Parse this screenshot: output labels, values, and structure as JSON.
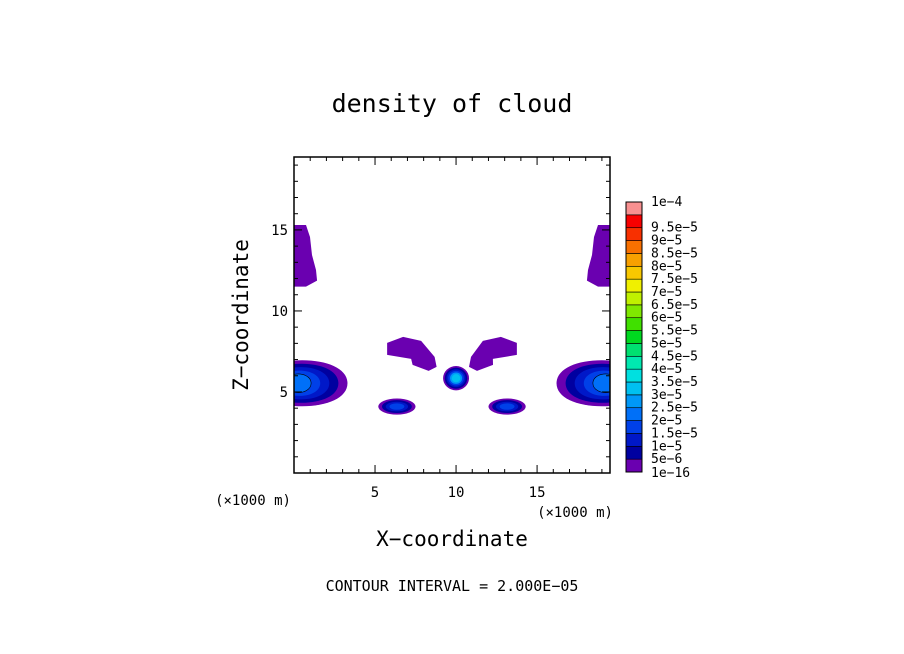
{
  "chart_data": {
    "type": "heatmap",
    "title": "density of cloud",
    "xlabel": "X−coordinate",
    "ylabel": "Z−coordinate",
    "x_unit_left": "(×1000 m)",
    "x_unit_right": "(×1000 m)",
    "xlim": [
      0,
      19.5
    ],
    "ylim": [
      0,
      19.5
    ],
    "x_ticks": [
      {
        "value": 5,
        "label": "5"
      },
      {
        "value": 10,
        "label": "10"
      },
      {
        "value": 15,
        "label": "15"
      }
    ],
    "y_ticks": [
      {
        "value": 5,
        "label": "5"
      },
      {
        "value": 10,
        "label": "10"
      },
      {
        "value": 15,
        "label": "15"
      }
    ],
    "footer": "CONTOUR INTERVAL = 2.000E−05",
    "colorbar": [
      {
        "label": "1e−16",
        "color": "#6a00b0"
      },
      {
        "label": "5e−6",
        "color": "#0000a0"
      },
      {
        "label": "1e−5",
        "color": "#0018c8"
      },
      {
        "label": "1.5e−5",
        "color": "#0040e8"
      },
      {
        "label": "2e−5",
        "color": "#0070f8"
      },
      {
        "label": "2.5e−5",
        "color": "#0098f8"
      },
      {
        "label": "3e−5",
        "color": "#00c0f0"
      },
      {
        "label": "3.5e−5",
        "color": "#00e0e0"
      },
      {
        "label": "4e−5",
        "color": "#00e8b0"
      },
      {
        "label": "4.5e−5",
        "color": "#00e070"
      },
      {
        "label": "5e−5",
        "color": "#00d820"
      },
      {
        "label": "5.5e−5",
        "color": "#40e000"
      },
      {
        "label": "6e−5",
        "color": "#80e800"
      },
      {
        "label": "6.5e−5",
        "color": "#c0f000"
      },
      {
        "label": "7e−5",
        "color": "#f0f000"
      },
      {
        "label": "7.5e−5",
        "color": "#f8c800"
      },
      {
        "label": "8e−5",
        "color": "#f8a000"
      },
      {
        "label": "8.5e−5",
        "color": "#f87000"
      },
      {
        "label": "9e−5",
        "color": "#f83000"
      },
      {
        "label": "9.5e−5",
        "color": "#f80000"
      },
      {
        "label": "1e−4",
        "color": "#f89090"
      }
    ],
    "regions": [
      {
        "name": "top-left-blob",
        "level": "1e−16",
        "x": [
          0,
          1.3
        ],
        "z": [
          11.5,
          15.3
        ]
      },
      {
        "name": "top-right-blob",
        "level": "1e−16",
        "x": [
          18.2,
          19.5
        ],
        "z": [
          11.5,
          15.3
        ]
      },
      {
        "name": "left-center-blob",
        "levels": [
          "1e−16",
          "5e−6",
          "1e−5",
          "1.5e−5",
          "2e−5"
        ],
        "x": [
          0,
          3.3
        ],
        "z": [
          4.2,
          7.0
        ]
      },
      {
        "name": "right-center-blob",
        "levels": [
          "1e−16",
          "5e−6",
          "1e−5",
          "1.5e−5",
          "2e−5"
        ],
        "x": [
          16.2,
          19.5
        ],
        "z": [
          4.2,
          7.0
        ]
      },
      {
        "name": "upper-left-arm",
        "level": "1e−16",
        "x": [
          5.5,
          8.8
        ],
        "z": [
          6.3,
          8.4
        ]
      },
      {
        "name": "upper-right-arm",
        "level": "1e−16",
        "x": [
          10.8,
          14.0
        ],
        "z": [
          6.3,
          8.4
        ]
      },
      {
        "name": "center-core",
        "levels": [
          "1e−16",
          "5e−6",
          "1e−5",
          "1.5e−5",
          "2.5e−5",
          "3e−5"
        ],
        "x": [
          9.2,
          10.8
        ],
        "z": [
          5.1,
          6.6
        ]
      },
      {
        "name": "lower-left-blob",
        "levels": [
          "1e−16",
          "5e−6",
          "1e−5",
          "1.5e−5"
        ],
        "x": [
          5.2,
          7.5
        ],
        "z": [
          3.6,
          4.6
        ]
      },
      {
        "name": "lower-right-blob",
        "levels": [
          "1e−16",
          "5e−6",
          "1e−5",
          "1.5e−5"
        ],
        "x": [
          12.0,
          14.3
        ],
        "z": [
          3.6,
          4.6
        ]
      }
    ]
  }
}
